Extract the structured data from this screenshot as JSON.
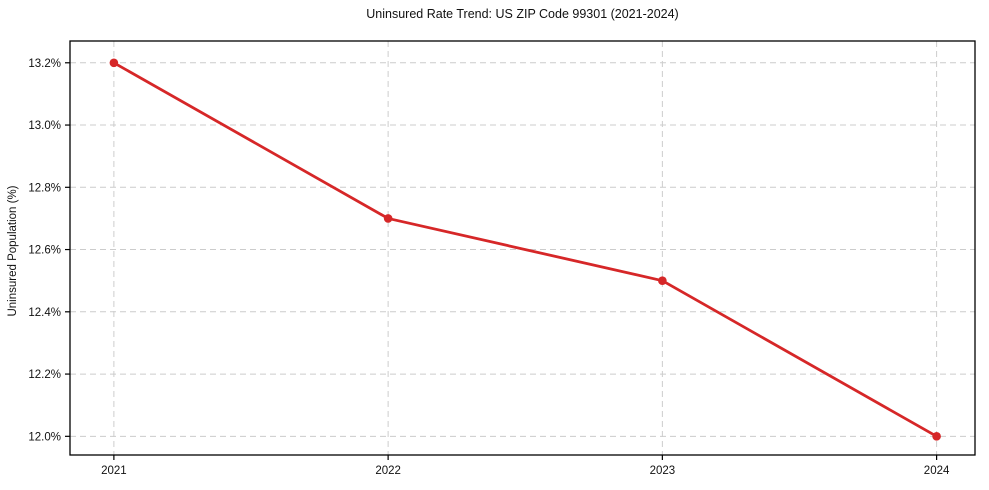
{
  "chart_data": {
    "type": "line",
    "title": "Uninsured Rate Trend: US ZIP Code 99301 (2021-2024)",
    "xlabel": "",
    "ylabel": "Uninsured Population (%)",
    "x": [
      2021,
      2022,
      2023,
      2024
    ],
    "x_tick_labels": [
      "2021",
      "2022",
      "2023",
      "2024"
    ],
    "series": [
      {
        "name": "Uninsured rate",
        "values": [
          13.2,
          12.7,
          12.5,
          12.0
        ]
      }
    ],
    "y_ticks": [
      12.0,
      12.2,
      12.4,
      12.6,
      12.8,
      13.0,
      13.2
    ],
    "y_tick_labels": [
      "12.0%",
      "12.2%",
      "12.4%",
      "12.6%",
      "12.8%",
      "13.0%",
      "13.2%"
    ],
    "xlim": [
      2020.84,
      2024.14
    ],
    "ylim": [
      11.94,
      13.27
    ],
    "grid": true,
    "legend": "none",
    "line_color": "#d62728",
    "marker": "circle",
    "grid_color": "#cccccc",
    "spine_color": "#000000",
    "text_color": "#111111"
  }
}
